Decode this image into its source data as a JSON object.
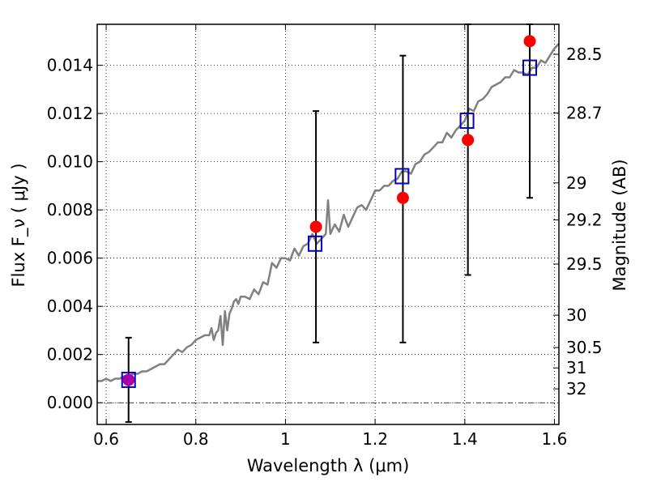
{
  "chart_data": {
    "type": "scatter",
    "title": "",
    "xlabel": "Wavelength  λ (μm)",
    "ylabel": "Flux  F_ν  ( μJy )",
    "ylabel_right": "Magnitude (AB)",
    "xlim": [
      0.58,
      1.61
    ],
    "ylim": [
      -0.0009,
      0.0157
    ],
    "grid": true,
    "x_ticks": [
      {
        "value": 0.6,
        "label": "0.6"
      },
      {
        "value": 0.8,
        "label": "0.8"
      },
      {
        "value": 1.0,
        "label": "1"
      },
      {
        "value": 1.2,
        "label": "1.2"
      },
      {
        "value": 1.4,
        "label": "1.4"
      },
      {
        "value": 1.6,
        "label": "1.6"
      }
    ],
    "y_ticks": [
      {
        "value": 0.0,
        "label": "0.000"
      },
      {
        "value": 0.002,
        "label": "0.002"
      },
      {
        "value": 0.004,
        "label": "0.004"
      },
      {
        "value": 0.006,
        "label": "0.006"
      },
      {
        "value": 0.008,
        "label": "0.008"
      },
      {
        "value": 0.01,
        "label": "0.010"
      },
      {
        "value": 0.012,
        "label": "0.012"
      },
      {
        "value": 0.014,
        "label": "0.014"
      }
    ],
    "magnitude_ticks": [
      {
        "value": 28.5,
        "label": "28.5"
      },
      {
        "value": 28.7,
        "label": "28.7"
      },
      {
        "value": 29.0,
        "label": "29"
      },
      {
        "value": 29.2,
        "label": "29.2"
      },
      {
        "value": 29.5,
        "label": "29.5"
      },
      {
        "value": 30.0,
        "label": "30"
      },
      {
        "value": 30.5,
        "label": "30.5"
      },
      {
        "value": 31.0,
        "label": "31"
      },
      {
        "value": 32.0,
        "label": "32"
      }
    ],
    "model_spectrum": {
      "color": "#808080",
      "x": [
        0.58,
        0.59,
        0.6,
        0.61,
        0.62,
        0.63,
        0.64,
        0.65,
        0.66,
        0.67,
        0.68,
        0.69,
        0.7,
        0.71,
        0.72,
        0.73,
        0.74,
        0.75,
        0.76,
        0.77,
        0.78,
        0.79,
        0.8,
        0.81,
        0.82,
        0.83,
        0.835,
        0.84,
        0.845,
        0.85,
        0.855,
        0.86,
        0.865,
        0.87,
        0.875,
        0.88,
        0.885,
        0.89,
        0.895,
        0.9,
        0.91,
        0.92,
        0.93,
        0.94,
        0.95,
        0.96,
        0.97,
        0.98,
        0.99,
        1.0,
        1.01,
        1.02,
        1.03,
        1.04,
        1.05,
        1.06,
        1.07,
        1.08,
        1.09,
        1.095,
        1.1,
        1.11,
        1.12,
        1.13,
        1.14,
        1.15,
        1.16,
        1.17,
        1.18,
        1.19,
        1.2,
        1.21,
        1.22,
        1.23,
        1.24,
        1.25,
        1.26,
        1.27,
        1.28,
        1.29,
        1.3,
        1.31,
        1.32,
        1.33,
        1.34,
        1.35,
        1.36,
        1.37,
        1.38,
        1.39,
        1.4,
        1.41,
        1.42,
        1.43,
        1.44,
        1.45,
        1.46,
        1.47,
        1.48,
        1.49,
        1.5,
        1.51,
        1.52,
        1.53,
        1.54,
        1.55,
        1.56,
        1.57,
        1.58,
        1.59,
        1.6,
        1.61
      ],
      "y": [
        0.0009,
        0.0009,
        0.001,
        0.0009,
        0.001,
        0.001,
        0.0011,
        0.0011,
        0.0012,
        0.0012,
        0.0013,
        0.0013,
        0.0014,
        0.0015,
        0.0016,
        0.0016,
        0.0018,
        0.002,
        0.0022,
        0.0021,
        0.0023,
        0.0024,
        0.0026,
        0.0027,
        0.0028,
        0.0028,
        0.0031,
        0.0026,
        0.0029,
        0.003,
        0.0036,
        0.0024,
        0.0038,
        0.003,
        0.0037,
        0.0039,
        0.0042,
        0.0043,
        0.0041,
        0.0044,
        0.0044,
        0.0043,
        0.0047,
        0.0045,
        0.005,
        0.0049,
        0.0058,
        0.0056,
        0.006,
        0.006,
        0.0059,
        0.0064,
        0.0061,
        0.0065,
        0.0066,
        0.007,
        0.0066,
        0.0068,
        0.007,
        0.0084,
        0.007,
        0.0074,
        0.0071,
        0.0078,
        0.0073,
        0.0077,
        0.0081,
        0.0082,
        0.008,
        0.0084,
        0.0088,
        0.0088,
        0.009,
        0.009,
        0.0092,
        0.0093,
        0.0096,
        0.0096,
        0.0095,
        0.0099,
        0.01,
        0.0103,
        0.0104,
        0.0106,
        0.0108,
        0.0108,
        0.0112,
        0.011,
        0.0113,
        0.0115,
        0.0117,
        0.0122,
        0.0121,
        0.0125,
        0.0126,
        0.0128,
        0.0131,
        0.0132,
        0.0133,
        0.0135,
        0.0135,
        0.0138,
        0.0137,
        0.0137,
        0.0136,
        0.0139,
        0.0139,
        0.0142,
        0.0141,
        0.0144,
        0.0147,
        0.0149
      ]
    },
    "model_photometry": {
      "color": "#0000cc",
      "x": [
        0.65,
        1.066,
        1.26,
        1.405,
        1.545
      ],
      "y": [
        0.00095,
        0.0066,
        0.0094,
        0.0117,
        0.0139
      ]
    },
    "observed": {
      "color": "#ff0000",
      "x": [
        0.65,
        1.068,
        1.262,
        1.407,
        1.545
      ],
      "y": [
        0.00095,
        0.0073,
        0.0085,
        0.0109,
        0.015
      ],
      "err_low": [
        -0.0008,
        0.0025,
        0.0025,
        0.0053,
        0.0085
      ],
      "err_high": [
        0.0027,
        0.0121,
        0.0144,
        0.0157,
        0.0157
      ],
      "first_point_color": "#aa00aa"
    }
  }
}
